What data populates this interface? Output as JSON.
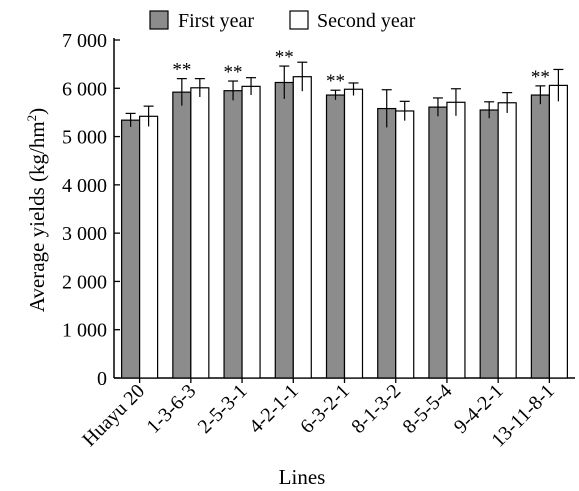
{
  "chart_data": {
    "type": "bar",
    "title": "",
    "xlabel": "Lines",
    "ylabel": "Average yields (kg/hm",
    "ylabel_superscript": "2",
    "ylabel_suffix": ")",
    "ylim": [
      0,
      7000
    ],
    "yticks": [
      0,
      1000,
      2000,
      3000,
      4000,
      5000,
      6000,
      7000
    ],
    "ytick_labels": [
      "0",
      "1 000",
      "2 000",
      "3 000",
      "4 000",
      "5 000",
      "6 000",
      "7 000"
    ],
    "grid": false,
    "legend_position": "top",
    "categories": [
      "Huayu 20",
      "1-3-6-3",
      "2-5-3-1",
      "4-2-1-1",
      "6-3-2-1",
      "8-1-3-2",
      "8-5-5-4",
      "9-4-2-1",
      "13-11-8-1"
    ],
    "series": [
      {
        "name": "First year",
        "color": "#8c8c8c",
        "values": [
          5340,
          5920,
          5950,
          6120,
          5860,
          5580,
          5610,
          5550,
          5860
        ],
        "errors": [
          140,
          280,
          200,
          340,
          100,
          390,
          190,
          170,
          190
        ]
      },
      {
        "name": "Second year",
        "color": "#ffffff",
        "values": [
          5420,
          6010,
          6040,
          6240,
          5980,
          5530,
          5710,
          5700,
          6060
        ],
        "errors": [
          210,
          190,
          180,
          300,
          130,
          200,
          280,
          210,
          330
        ]
      }
    ],
    "significance": [
      {
        "category": "1-3-6-3",
        "label": "**"
      },
      {
        "category": "2-5-3-1",
        "label": "**"
      },
      {
        "category": "4-2-1-1",
        "label": "**"
      },
      {
        "category": "6-3-2-1",
        "label": "**"
      },
      {
        "category": "13-11-8-1",
        "label": "**"
      }
    ]
  }
}
